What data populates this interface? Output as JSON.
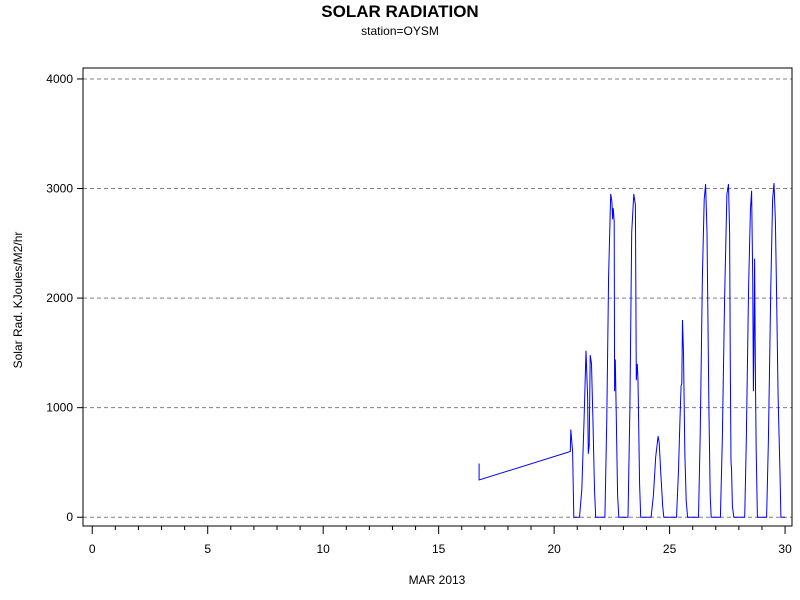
{
  "chart_data": {
    "type": "line",
    "title": "SOLAR RADIATION",
    "subtitle": "station=OYSM",
    "xlabel": "MAR 2013",
    "ylabel": "Solar Rad. KJoules/M2/hr",
    "xlim": [
      -0.4,
      30.3
    ],
    "ylim": [
      -80,
      4100
    ],
    "xticks": [
      0,
      5,
      10,
      15,
      20,
      25,
      30
    ],
    "yticks": [
      0,
      1000,
      2000,
      3000,
      4000
    ],
    "grid": "horizontal dashed",
    "series": [
      {
        "color": "#0000ff",
        "points": [
          [
            16.75,
            490
          ],
          [
            16.75,
            340
          ],
          [
            20.7,
            600
          ],
          [
            20.72,
            800
          ],
          [
            20.8,
            600
          ],
          [
            20.85,
            0
          ],
          [
            21.1,
            0
          ],
          [
            21.2,
            250
          ],
          [
            21.3,
            900
          ],
          [
            21.38,
            1520
          ],
          [
            21.45,
            1100
          ],
          [
            21.48,
            580
          ],
          [
            21.52,
            650
          ],
          [
            21.56,
            1480
          ],
          [
            21.62,
            1400
          ],
          [
            21.68,
            900
          ],
          [
            21.75,
            250
          ],
          [
            21.8,
            0
          ],
          [
            22.2,
            0
          ],
          [
            22.28,
            900
          ],
          [
            22.36,
            2200
          ],
          [
            22.45,
            2950
          ],
          [
            22.5,
            2880
          ],
          [
            22.53,
            2720
          ],
          [
            22.56,
            2820
          ],
          [
            22.6,
            2700
          ],
          [
            22.62,
            1150
          ],
          [
            22.65,
            1440
          ],
          [
            22.7,
            800
          ],
          [
            22.75,
            200
          ],
          [
            22.8,
            0
          ],
          [
            23.2,
            0
          ],
          [
            23.28,
            1000
          ],
          [
            23.36,
            2600
          ],
          [
            23.45,
            2950
          ],
          [
            23.52,
            2850
          ],
          [
            23.56,
            1250
          ],
          [
            23.6,
            1400
          ],
          [
            23.63,
            1250
          ],
          [
            23.7,
            300
          ],
          [
            23.75,
            0
          ],
          [
            24.2,
            0
          ],
          [
            24.3,
            200
          ],
          [
            24.4,
            550
          ],
          [
            24.5,
            740
          ],
          [
            24.55,
            680
          ],
          [
            24.62,
            400
          ],
          [
            24.7,
            100
          ],
          [
            24.75,
            0
          ],
          [
            25.3,
            0
          ],
          [
            25.38,
            400
          ],
          [
            25.45,
            900
          ],
          [
            25.5,
            1200
          ],
          [
            25.53,
            1220
          ],
          [
            25.56,
            1800
          ],
          [
            25.6,
            1500
          ],
          [
            25.66,
            600
          ],
          [
            25.72,
            150
          ],
          [
            25.78,
            0
          ],
          [
            26.25,
            0
          ],
          [
            26.33,
            800
          ],
          [
            26.42,
            2200
          ],
          [
            26.5,
            2900
          ],
          [
            26.56,
            3040
          ],
          [
            26.62,
            2600
          ],
          [
            26.7,
            1000
          ],
          [
            26.76,
            200
          ],
          [
            26.8,
            0
          ],
          [
            27.2,
            0
          ],
          [
            27.28,
            700
          ],
          [
            27.38,
            2000
          ],
          [
            27.48,
            2950
          ],
          [
            27.55,
            3040
          ],
          [
            27.6,
            2600
          ],
          [
            27.63,
            1400
          ],
          [
            27.66,
            500
          ],
          [
            27.68,
            450
          ],
          [
            27.72,
            100
          ],
          [
            27.78,
            0
          ],
          [
            28.25,
            0
          ],
          [
            28.32,
            700
          ],
          [
            28.42,
            2100
          ],
          [
            28.5,
            2800
          ],
          [
            28.55,
            2980
          ],
          [
            28.6,
            2200
          ],
          [
            28.63,
            1150
          ],
          [
            28.65,
            1500
          ],
          [
            28.68,
            2360
          ],
          [
            28.72,
            1200
          ],
          [
            28.75,
            600
          ],
          [
            28.8,
            0
          ],
          [
            29.2,
            0
          ],
          [
            29.28,
            700
          ],
          [
            29.38,
            2100
          ],
          [
            29.46,
            2900
          ],
          [
            29.52,
            3050
          ],
          [
            29.58,
            2700
          ],
          [
            29.62,
            2200
          ],
          [
            29.7,
            1100
          ],
          [
            29.78,
            400
          ],
          [
            29.82,
            0
          ],
          [
            30.0,
            0
          ]
        ]
      }
    ]
  }
}
